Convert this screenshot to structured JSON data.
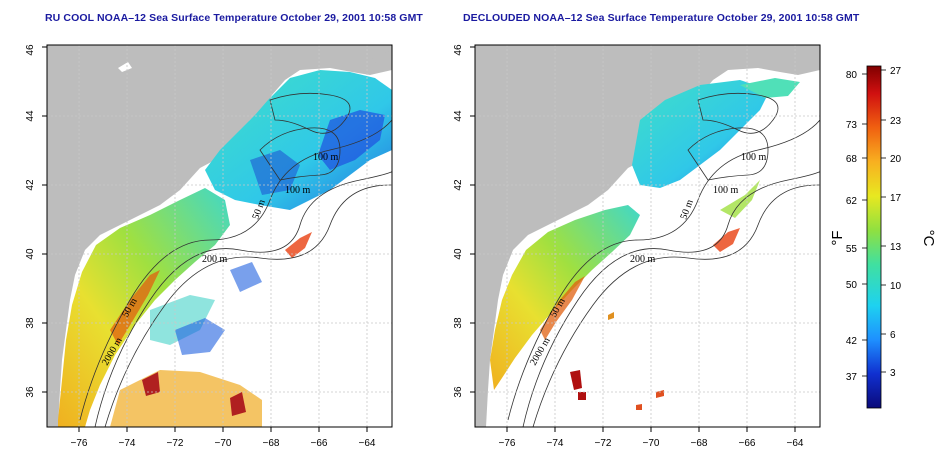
{
  "panels": [
    {
      "title": "RU COOL NOAA–12 Sea Surface Temperature October 29, 2001 10:58 GMT",
      "contour_labels": [
        "100 m",
        "100 m",
        "50 m",
        "200 m",
        "50 m",
        "2000 m"
      ]
    },
    {
      "title": "DECLOUDED NOAA–12 Sea Surface Temperature October 29, 2001 10:58 GMT",
      "contour_labels": [
        "100 m",
        "100 m",
        "50 m",
        "200 m",
        "50 m",
        "2000 m"
      ]
    }
  ],
  "axes": {
    "x_ticks": [
      "−76",
      "−74",
      "−72",
      "−70",
      "−68",
      "−66",
      "−64"
    ],
    "y_ticks": [
      "36",
      "38",
      "40",
      "42",
      "44",
      "46"
    ]
  },
  "colorbar": {
    "fahrenheit_label": "°F",
    "celsius_label": "°C",
    "fahrenheit_ticks": [
      "80",
      "73",
      "68",
      "62",
      "55",
      "50",
      "42",
      "37"
    ],
    "celsius_ticks": [
      "27",
      "23",
      "20",
      "17",
      "13",
      "10",
      "6",
      "3"
    ],
    "colors": [
      "#0a0a7a",
      "#1030d0",
      "#1e90ff",
      "#1ed2f0",
      "#40e0a0",
      "#90e040",
      "#e8e820",
      "#f8b020",
      "#f06010",
      "#d01010",
      "#800000"
    ]
  },
  "colors": {
    "land": "#bdbdbd",
    "title": "#1a1aa0"
  }
}
